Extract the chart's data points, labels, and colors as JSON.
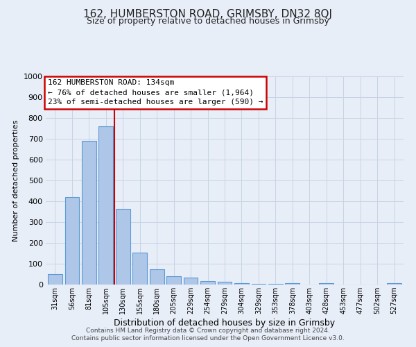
{
  "title": "162, HUMBERSTON ROAD, GRIMSBY, DN32 8QJ",
  "subtitle": "Size of property relative to detached houses in Grimsby",
  "xlabel": "Distribution of detached houses by size in Grimsby",
  "ylabel": "Number of detached properties",
  "bar_labels": [
    "31sqm",
    "56sqm",
    "81sqm",
    "105sqm",
    "130sqm",
    "155sqm",
    "180sqm",
    "205sqm",
    "229sqm",
    "254sqm",
    "279sqm",
    "304sqm",
    "329sqm",
    "353sqm",
    "378sqm",
    "403sqm",
    "428sqm",
    "453sqm",
    "477sqm",
    "502sqm",
    "527sqm"
  ],
  "bar_values": [
    50,
    420,
    690,
    760,
    365,
    155,
    75,
    40,
    32,
    18,
    12,
    8,
    3,
    3,
    7,
    0,
    8,
    0,
    0,
    0,
    8
  ],
  "bar_color": "#aec6e8",
  "bar_edge_color": "#5b9bd5",
  "vline_x_idx": 3.5,
  "vline_color": "#cc0000",
  "ylim_max": 1000,
  "yticks": [
    0,
    100,
    200,
    300,
    400,
    500,
    600,
    700,
    800,
    900,
    1000
  ],
  "annotation_title": "162 HUMBERSTON ROAD: 134sqm",
  "annotation_line1": "← 76% of detached houses are smaller (1,964)",
  "annotation_line2": "23% of semi-detached houses are larger (590) →",
  "annotation_box_facecolor": "#ffffff",
  "annotation_box_edgecolor": "#cc0000",
  "grid_color": "#c8d4e4",
  "bg_color": "#e8eef8",
  "footer1": "Contains HM Land Registry data © Crown copyright and database right 2024.",
  "footer2": "Contains public sector information licensed under the Open Government Licence v3.0."
}
